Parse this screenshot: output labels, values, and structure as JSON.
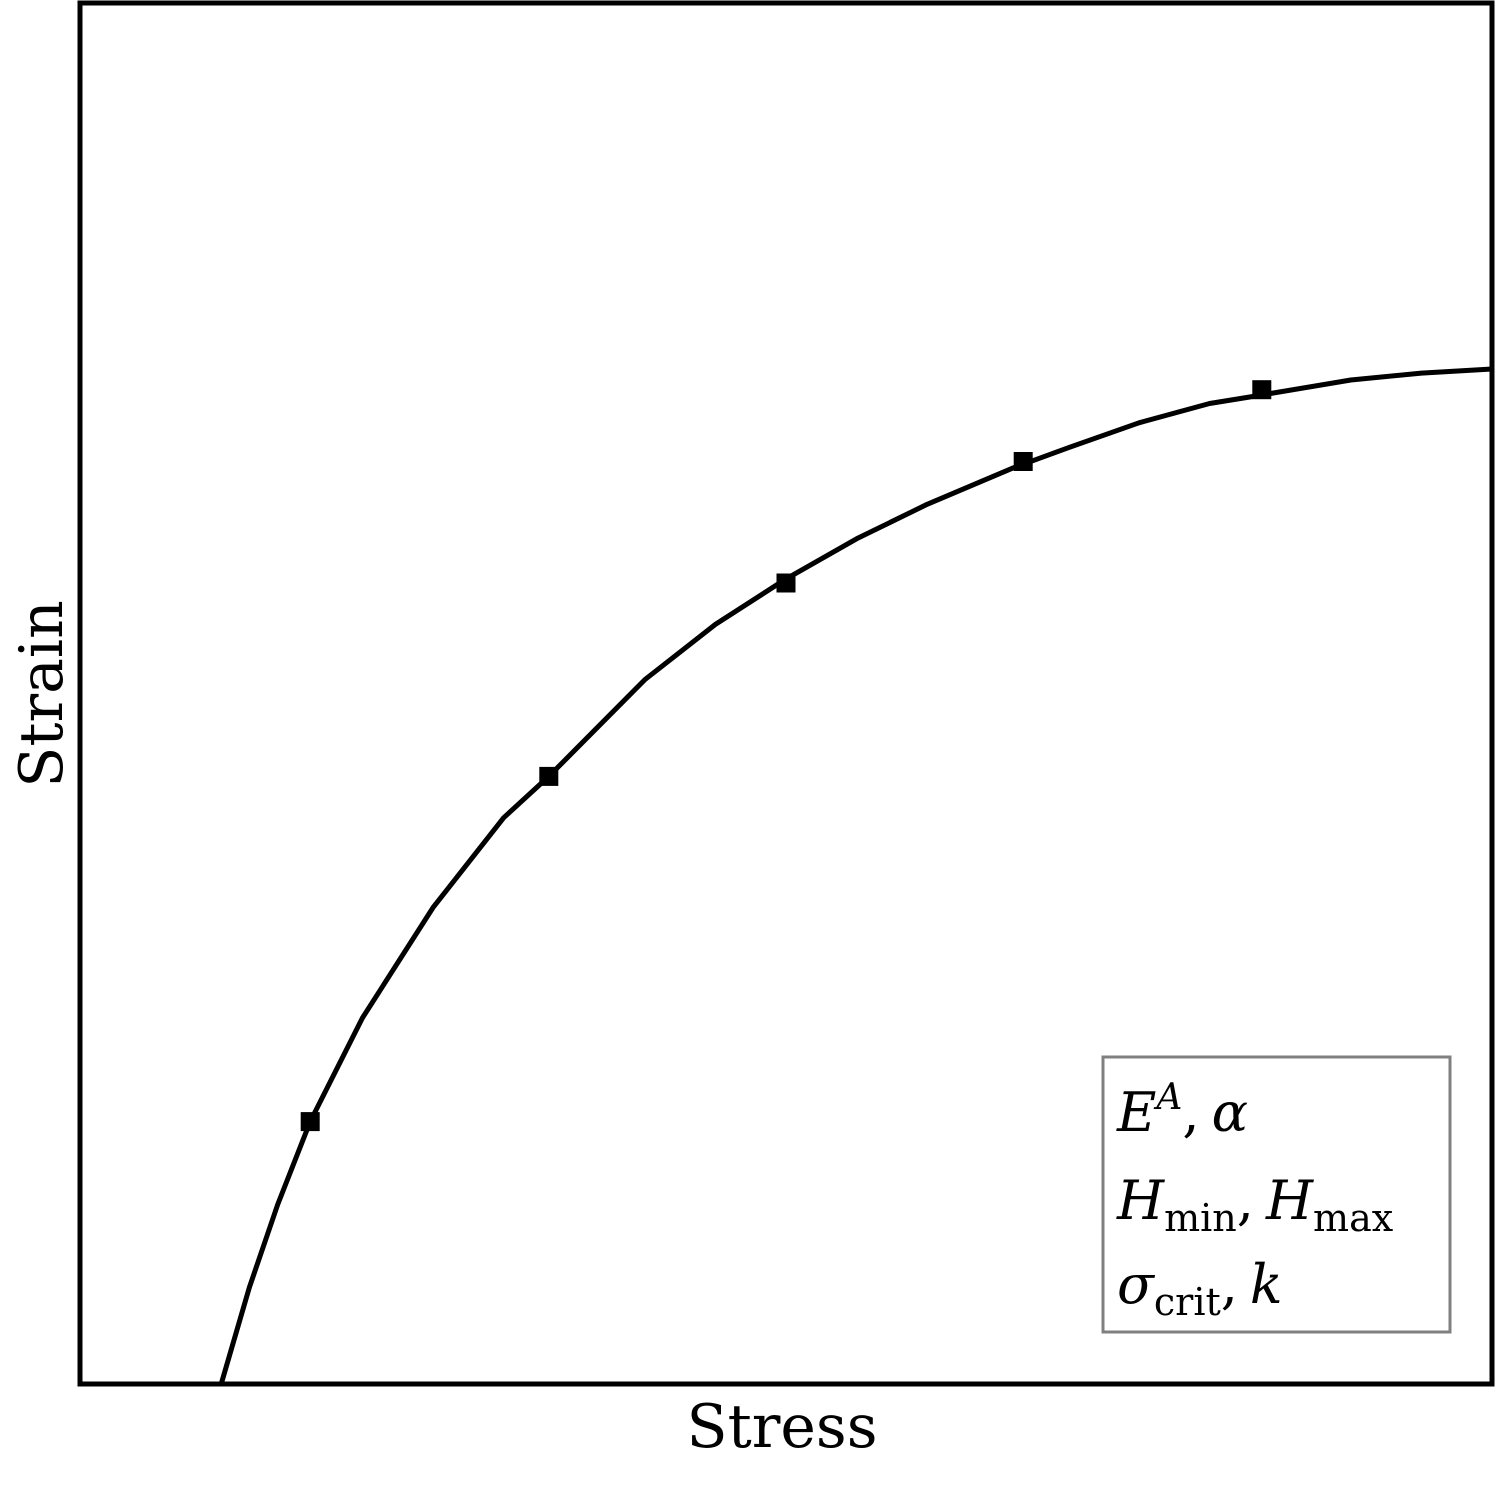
{
  "chart_data": {
    "type": "line",
    "xlabel": "Stress",
    "ylabel": "Strain",
    "title": "",
    "xlim": [
      0,
      1
    ],
    "ylim": [
      0,
      1
    ],
    "grid": false,
    "tick_labels": false,
    "curve": {
      "color": "#000000",
      "x": [
        0.1,
        0.12,
        0.14,
        0.163,
        0.2,
        0.25,
        0.3,
        0.332,
        0.4,
        0.45,
        0.5,
        0.55,
        0.6,
        0.66,
        0.7,
        0.75,
        0.8,
        0.83,
        0.9,
        0.95,
        1.0
      ],
      "y": [
        0.0,
        0.07,
        0.13,
        0.19,
        0.265,
        0.345,
        0.41,
        0.44,
        0.51,
        0.55,
        0.583,
        0.612,
        0.637,
        0.663,
        0.678,
        0.696,
        0.71,
        0.715,
        0.727,
        0.732,
        0.735
      ]
    },
    "markers": {
      "shape": "square",
      "color": "#000000",
      "x": [
        0.163,
        0.332,
        0.5,
        0.668,
        0.837
      ],
      "y": [
        0.19,
        0.44,
        0.58,
        0.668,
        0.72
      ]
    },
    "annotation_box": {
      "position": "bottom-right",
      "border_color": "#808080",
      "lines": [
        {
          "base": "E",
          "sup": "A",
          "sep": ",",
          "next": "α"
        },
        {
          "base": "H",
          "sub": "min",
          "sep": ",",
          "base2": "H",
          "sub2": "max"
        },
        {
          "base": "σ",
          "sub": "crit",
          "sep": ",",
          "next": "k"
        }
      ]
    }
  }
}
